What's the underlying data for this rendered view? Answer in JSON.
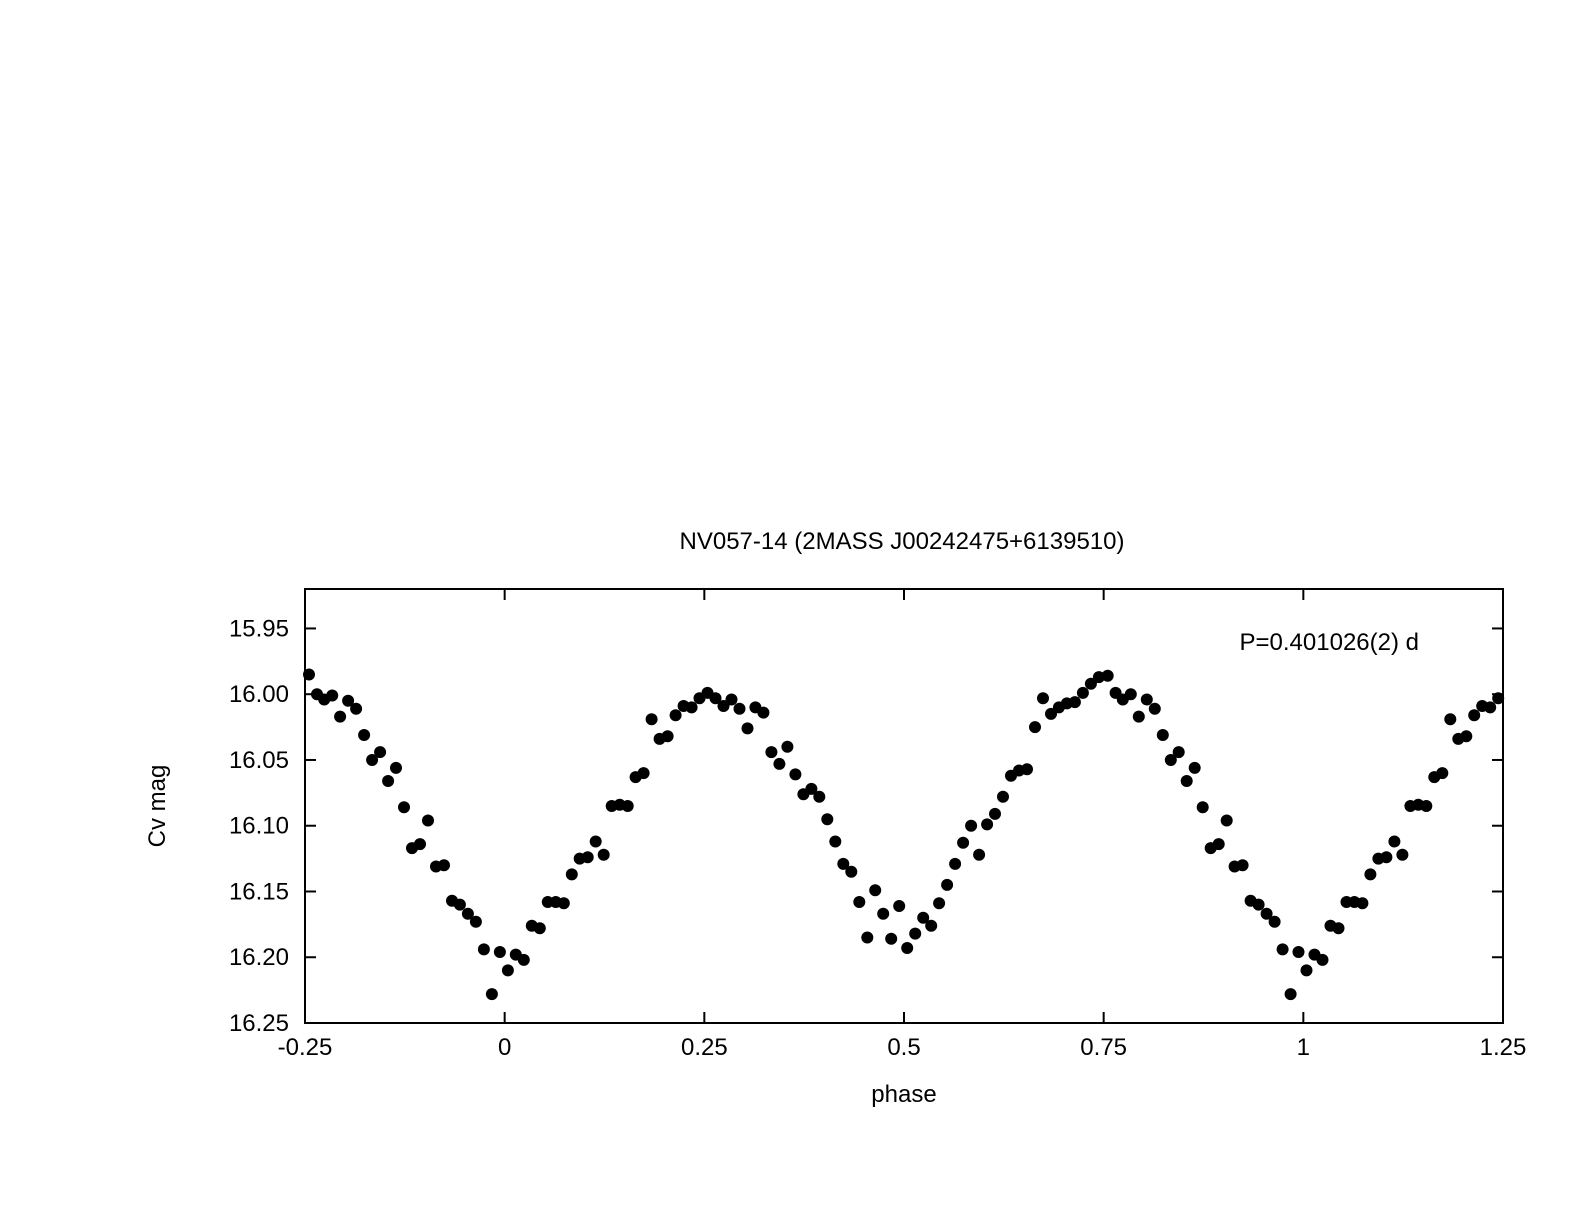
{
  "chart_data": {
    "type": "scatter",
    "title": "NV057-14 (2MASS J00242475+6139510)",
    "xlabel": "phase",
    "ylabel": "Cv mag",
    "annotation": "P=0.401026(2) d",
    "xlim": [
      -0.25,
      1.25
    ],
    "ylim": [
      16.25,
      15.92
    ],
    "y_inverted": true,
    "grid": false,
    "legend": "none",
    "marker_color": "#000000",
    "xticks": [
      {
        "value": -0.25,
        "label": "-0.25"
      },
      {
        "value": 0,
        "label": "0"
      },
      {
        "value": 0.25,
        "label": "0.25"
      },
      {
        "value": 0.5,
        "label": "0.5"
      },
      {
        "value": 0.75,
        "label": "0.75"
      },
      {
        "value": 1,
        "label": "1"
      },
      {
        "value": 1.25,
        "label": "1.25"
      }
    ],
    "yticks": [
      {
        "value": 15.95,
        "label": "15.95"
      },
      {
        "value": 16.0,
        "label": "16.00"
      },
      {
        "value": 16.05,
        "label": "16.05"
      },
      {
        "value": 16.1,
        "label": "16.10"
      },
      {
        "value": 16.15,
        "label": "16.15"
      },
      {
        "value": 16.2,
        "label": "16.20"
      },
      {
        "value": 16.25,
        "label": "16.25"
      }
    ],
    "x": [
      -0.245,
      -0.235,
      -0.226,
      -0.216,
      -0.206,
      -0.196,
      -0.186,
      -0.176,
      -0.166,
      -0.156,
      -0.146,
      -0.136,
      -0.126,
      -0.116,
      -0.106,
      -0.096,
      -0.086,
      -0.076,
      -0.066,
      -0.056,
      -0.046,
      -0.036,
      -0.026,
      -0.016,
      -0.006,
      0.004,
      0.014,
      0.024,
      0.034,
      0.044,
      0.054,
      0.064,
      0.074,
      0.084,
      0.094,
      0.104,
      0.114,
      0.124,
      0.134,
      0.144,
      0.154,
      0.164,
      0.174,
      0.184,
      0.194,
      0.204,
      0.214,
      0.224,
      0.234,
      0.244,
      0.254,
      0.264,
      0.274,
      0.284,
      0.294,
      0.304,
      0.314,
      0.324,
      0.334,
      0.344,
      0.354,
      0.364,
      0.374,
      0.384,
      0.394,
      0.404,
      0.414,
      0.424,
      0.434,
      0.444,
      0.454,
      0.464,
      0.474,
      0.484,
      0.494,
      0.504,
      0.514,
      0.524,
      0.534,
      0.544,
      0.554,
      0.564,
      0.574,
      0.584,
      0.594,
      0.604,
      0.614,
      0.624,
      0.634,
      0.644,
      0.654,
      0.664,
      0.674,
      0.684,
      0.694,
      0.704,
      0.714,
      0.724,
      0.734,
      0.744,
      0.755,
      0.765,
      0.774,
      0.784,
      0.794,
      0.804,
      0.814,
      0.824,
      0.834,
      0.844,
      0.854,
      0.864,
      0.874,
      0.884,
      0.894,
      0.904,
      0.914,
      0.924,
      0.934,
      0.944,
      0.954,
      0.964,
      0.974,
      0.984,
      0.994,
      1.004,
      1.014,
      1.024,
      1.034,
      1.044,
      1.054,
      1.064,
      1.074,
      1.084,
      1.094,
      1.104,
      1.114,
      1.124,
      1.134,
      1.144,
      1.154,
      1.164,
      1.174,
      1.184,
      1.194,
      1.204,
      1.214,
      1.224,
      1.234,
      1.244
    ],
    "y": [
      15.985,
      16.0,
      16.004,
      16.001,
      16.017,
      16.005,
      16.011,
      16.031,
      16.05,
      16.044,
      16.066,
      16.056,
      16.086,
      16.117,
      16.114,
      16.096,
      16.131,
      16.13,
      16.157,
      16.16,
      16.167,
      16.173,
      16.194,
      16.228,
      16.196,
      16.21,
      16.198,
      16.202,
      16.176,
      16.178,
      16.158,
      16.158,
      16.159,
      16.137,
      16.125,
      16.124,
      16.112,
      16.122,
      16.085,
      16.084,
      16.085,
      16.063,
      16.06,
      16.019,
      16.034,
      16.032,
      16.016,
      16.009,
      16.01,
      16.003,
      15.999,
      16.003,
      16.009,
      16.004,
      16.011,
      16.026,
      16.01,
      16.014,
      16.044,
      16.053,
      16.04,
      16.061,
      16.076,
      16.072,
      16.078,
      16.095,
      16.112,
      16.129,
      16.135,
      16.158,
      16.185,
      16.149,
      16.167,
      16.186,
      16.161,
      16.193,
      16.182,
      16.17,
      16.176,
      16.159,
      16.145,
      16.129,
      16.113,
      16.1,
      16.122,
      16.099,
      16.091,
      16.078,
      16.062,
      16.058,
      16.057,
      16.025,
      16.003,
      16.015,
      16.01,
      16.007,
      16.006,
      15.999,
      15.992,
      15.987,
      15.986,
      15.999,
      16.004,
      16.0,
      16.017,
      16.004,
      16.011,
      16.031,
      16.05,
      16.044,
      16.066,
      16.056,
      16.086,
      16.117,
      16.114,
      16.096,
      16.131,
      16.13,
      16.157,
      16.16,
      16.167,
      16.173,
      16.194,
      16.228,
      16.196,
      16.21,
      16.198,
      16.202,
      16.176,
      16.178,
      16.158,
      16.158,
      16.159,
      16.137,
      16.125,
      16.124,
      16.112,
      16.122,
      16.085,
      16.084,
      16.085,
      16.063,
      16.06,
      16.019,
      16.034,
      16.032,
      16.016,
      16.009,
      16.01,
      16.003
    ]
  }
}
